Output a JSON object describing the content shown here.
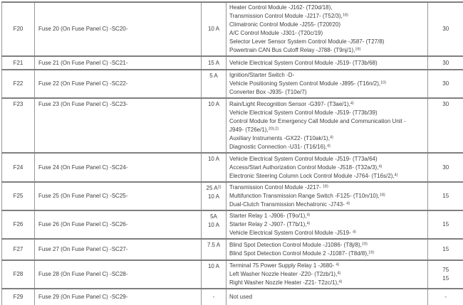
{
  "page": {
    "background_color": "#ffffff",
    "text_color": "#3f3f3f",
    "border_color": "#7f7f7f"
  },
  "table": {
    "rows": [
      {
        "id": "F20",
        "description": "Fuse 20 (On Fuse Panel C) -SC20-",
        "amps": [
          {
            "text": "10 A",
            "sup": ""
          }
        ],
        "components": [
          {
            "text": "Heater Control Module -J162- (T20d/18),",
            "sup": ""
          },
          {
            "text": "Transmission Control Module -J217- (T52/3),",
            "sup": "18)"
          },
          {
            "text": "Climatronic Control Module -J255- (T20f/20)",
            "sup": ""
          },
          {
            "text": "A/C Control Module -J301- (T20c/19)",
            "sup": ""
          },
          {
            "text": "Selector Lever Sensor System Control Module -J587- (T27/8)",
            "sup": ""
          },
          {
            "text": "Powertrain CAN Bus Cutoff Relay -J788- (T9nj/1),",
            "sup": "19)"
          }
        ],
        "values": [
          "30"
        ]
      },
      {
        "id": "F21",
        "description": "Fuse 21 (On Fuse Panel C) -SC21-",
        "amps": [
          {
            "text": "15 A",
            "sup": ""
          }
        ],
        "components": [
          {
            "text": "Vehicle Electrical System Control Module -J519- (T73b/68)",
            "sup": ""
          }
        ],
        "values": [
          "30"
        ]
      },
      {
        "id": "F22",
        "description": "Fuse 22 (On Fuse Panel C) -SC22-",
        "amps": [
          {
            "text": "5 A",
            "sup": ""
          }
        ],
        "components": [
          {
            "text": "Ignition/Starter Switch -D-",
            "sup": ""
          },
          {
            "text": "Vehicle Positioning System Control Module -J895- (T16n/2),",
            "sup": "10)"
          },
          {
            "text": "Converter Box -J935- (T10e/7)",
            "sup": ""
          }
        ],
        "values": [
          "30"
        ]
      },
      {
        "id": "F23",
        "description": "Fuse 23 (On Fuse Panel C) -SC23-",
        "amps": [
          {
            "text": "10 A",
            "sup": ""
          }
        ],
        "components": [
          {
            "text": "Rain/Light Recognition Sensor -G397- (T3ae/1),",
            "sup": "4)"
          },
          {
            "text": "Vehicle Electrical System Control Module -J519- (T73b/39)",
            "sup": ""
          },
          {
            "text": "Control Module for Emergency Call Module and Communication Unit -",
            "sup": ""
          },
          {
            "text": "J949- (T26e/1),",
            "sup": "20),2)"
          },
          {
            "text": "Auxiliary Instruments -GX22- (T10ak/1),",
            "sup": "4)"
          },
          {
            "text": "Diagnostic Connection -U31- (T16/16),",
            "sup": "4)"
          }
        ],
        "values": [
          "30"
        ]
      },
      {
        "id": "F24",
        "description": "Fuse 24 (On Fuse Panel C) -SC24-",
        "amps": [
          {
            "text": "10 A",
            "sup": ""
          }
        ],
        "components": [
          {
            "text": "Vehicle Electrical System Control Module -J519- (T73a/64)",
            "sup": ""
          },
          {
            "text": "Access/Start Authorization Control Module -J518- (T32a/3),",
            "sup": "4)"
          },
          {
            "text": "Electronic Steering Column Lock Control Module -J764- (T16s/2),",
            "sup": "4)"
          }
        ],
        "values": [
          "30"
        ]
      },
      {
        "id": "F25",
        "description": "Fuse 25 (On Fuse Panel C) -SC25-",
        "amps": [
          {
            "text": "25 A",
            "sup": "2)"
          },
          {
            "text": "10 A",
            "sup": ""
          }
        ],
        "components": [
          {
            "text": "Transmission Control Module -J217- ",
            "sup": "18)"
          },
          {
            "text": "Multifunction Transmission Range Switch -F125- (T10n/10),",
            "sup": "18)"
          },
          {
            "text": "Dual-Clutch Transmission Mechatronic -J743- ",
            "sup": "4)"
          }
        ],
        "values": [
          "15"
        ]
      },
      {
        "id": "F26",
        "description": "Fuse 26 (On Fuse Panel C) -SC26-",
        "amps": [
          {
            "text": "5A",
            "sup": ""
          },
          {
            "text": "10 A",
            "sup": ""
          }
        ],
        "components": [
          {
            "text": "Starter Relay 1 -J906- (T9o/1),",
            "sup": "4)"
          },
          {
            "text": "Starter Relay 2 -J907- (T7b/1),",
            "sup": "4)"
          },
          {
            "text": "Vehicle Electrical System Control Module -J519- ",
            "sup": "4)"
          }
        ],
        "values": [
          "15"
        ]
      },
      {
        "id": "F27",
        "description": "Fuse 27 (On Fuse Panel C) -SC27-",
        "amps": [
          {
            "text": "7.5 A",
            "sup": ""
          }
        ],
        "components": [
          {
            "text": "Blind Spot Detection Control Module -J1086- (T8j/8),",
            "sup": "19)"
          },
          {
            "text": "Blind Spot Detection Control Module 2 -J1087- (T8d/8),",
            "sup": "19)"
          }
        ],
        "values": [
          "15"
        ]
      },
      {
        "id": "F28",
        "description": "Fuse 28 (On Fuse Panel C) -SC28-",
        "amps": [
          {
            "text": "10 A",
            "sup": ""
          }
        ],
        "components": [
          {
            "text": "Terminal 75 Power Supply Relay 1 -J680- ",
            "sup": "4)"
          },
          {
            "text": "Left Washer Nozzle Heater -Z20- (T2zb/1),",
            "sup": "4)"
          },
          {
            "text": "Right Washer Nozzle Heater -Z21- T2zc/1),",
            "sup": "4)"
          }
        ],
        "values": [
          "75",
          "15"
        ]
      },
      {
        "id": "F29",
        "description": "Fuse 29 (On Fuse Panel C) -SC29-",
        "amps": [
          {
            "text": "-",
            "sup": ""
          }
        ],
        "components": [
          {
            "text": "Not used",
            "sup": ""
          }
        ],
        "values": [
          "-"
        ]
      }
    ]
  }
}
